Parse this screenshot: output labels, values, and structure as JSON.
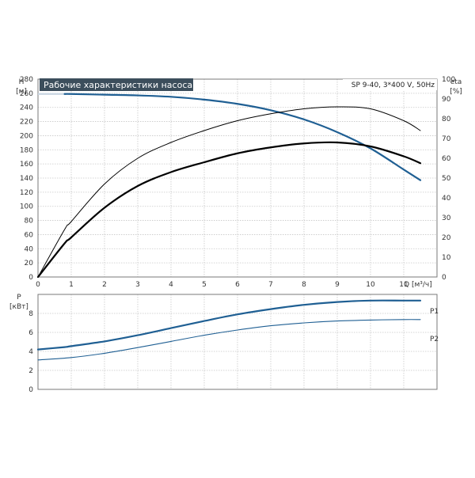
{
  "header": {
    "title": "Рабочие характеристики насоса",
    "model": "SP 9-40, 3*400 V, 50Hz"
  },
  "colors": {
    "title_bg": "#3c4e5c",
    "head_curve": "#1f5f93",
    "efficiency_curves": "#000000",
    "power_curves": "#1f5f93",
    "grid": "#c8c8c8",
    "frame": "#7a7a7a"
  },
  "chart_data": [
    {
      "type": "line",
      "name": "head-efficiency",
      "grid": true,
      "x_axis": {
        "label": "Q [м³/ч]",
        "range": [
          0,
          12
        ],
        "ticks": [
          "0",
          "1",
          "2",
          "3",
          "4",
          "5",
          "6",
          "7",
          "8",
          "9",
          "10",
          "11"
        ]
      },
      "y_axis_left": {
        "label_line1": "H",
        "label_line2": "[м]",
        "range": [
          0,
          280
        ],
        "ticks": [
          "0",
          "20",
          "40",
          "60",
          "80",
          "100",
          "120",
          "140",
          "160",
          "180",
          "200",
          "220",
          "240",
          "260",
          "280"
        ]
      },
      "y_axis_right": {
        "label_line1": "eta",
        "label_line2": "[%]",
        "range": [
          0,
          100
        ],
        "ticks": [
          "0",
          "10",
          "20",
          "30",
          "40",
          "50",
          "60",
          "70",
          "80",
          "90",
          "100"
        ]
      },
      "series": [
        {
          "axis": "left",
          "x": [
            0,
            0.8,
            1,
            2,
            3,
            4,
            5,
            6,
            7,
            8,
            9,
            10,
            11,
            11.5
          ],
          "y": [
            259,
            259,
            259,
            258,
            257,
            255,
            251,
            245,
            236,
            223,
            205,
            182,
            152,
            137
          ]
        },
        {
          "axis": "right",
          "x": [
            0,
            0.8,
            1,
            2,
            3,
            4,
            5,
            6,
            7,
            8,
            9,
            10,
            11,
            11.5
          ],
          "y": [
            0,
            24,
            28,
            47,
            60,
            68,
            74,
            79,
            82.5,
            85,
            86,
            85,
            79,
            74
          ]
        },
        {
          "axis": "right",
          "x": [
            0,
            0.8,
            1,
            2,
            3,
            4,
            5,
            6,
            7,
            8,
            9,
            10,
            11,
            11.5
          ],
          "y": [
            0,
            17,
            20,
            35,
            46,
            53,
            58,
            62.5,
            65.5,
            67.5,
            68,
            66,
            61,
            57.5
          ]
        }
      ]
    },
    {
      "type": "line",
      "name": "power",
      "grid": true,
      "y_axis_left": {
        "label_line1": "P",
        "label_line2": "[кВт]",
        "range": [
          0,
          10
        ],
        "ticks": [
          "0",
          "2",
          "4",
          "6",
          "8"
        ]
      },
      "series": [
        {
          "name": "P1",
          "x": [
            0,
            0.8,
            1,
            2,
            3,
            4,
            5,
            6,
            7,
            8,
            9,
            10,
            11,
            11.5
          ],
          "y": [
            4.2,
            4.45,
            4.55,
            5.05,
            5.7,
            6.45,
            7.2,
            7.9,
            8.45,
            8.9,
            9.2,
            9.35,
            9.35,
            9.35
          ]
        },
        {
          "name": "P2",
          "x": [
            0,
            1,
            2,
            3,
            4,
            5,
            6,
            7,
            8,
            9,
            10,
            11,
            11.5
          ],
          "y": [
            3.1,
            3.35,
            3.8,
            4.4,
            5.05,
            5.7,
            6.25,
            6.7,
            7.0,
            7.2,
            7.3,
            7.35,
            7.35
          ]
        }
      ]
    }
  ]
}
